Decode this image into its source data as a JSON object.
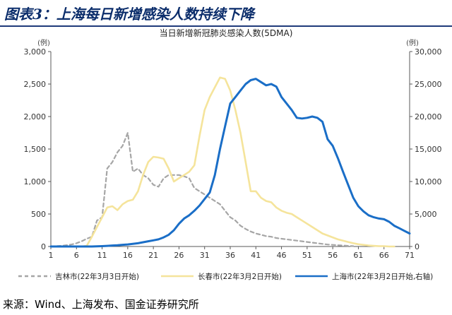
{
  "page": {
    "heading": "图表3：上海每日新增感染人数持续下降",
    "source": "来源：Wind、上海发布、国金证券研究所"
  },
  "chart_data": {
    "type": "line",
    "title": "当日新增新冠肺炎感染人数(5DMA)",
    "left_unit": "(例)",
    "right_unit": "(例)",
    "ylim_left": [
      0,
      3000
    ],
    "ylim_right": [
      0,
      30000
    ],
    "yticks_left": [
      "0",
      "500",
      "1,000",
      "1,500",
      "2,000",
      "2,500",
      "3,000"
    ],
    "yticks_right": [
      "0",
      "5,000",
      "10,000",
      "15,000",
      "20,000",
      "25,000",
      "30,000"
    ],
    "xlim": [
      1,
      71
    ],
    "xticks": [
      1,
      6,
      11,
      16,
      21,
      26,
      31,
      36,
      41,
      46,
      51,
      56,
      61,
      66,
      71
    ],
    "grid": false,
    "legend_position": "bottom",
    "colors": {
      "jilin": "#a6a6a6",
      "changchun": "#f5e49b",
      "shanghai": "#1a6ec7",
      "axis": "#595959"
    },
    "series": [
      {
        "name": "吉林市(22年3月3日开始)",
        "axis": "left",
        "style": "dashed",
        "color": "#a6a6a6",
        "x": [
          1,
          2,
          3,
          4,
          5,
          6,
          7,
          8,
          9,
          10,
          11,
          12,
          13,
          14,
          15,
          16,
          17,
          18,
          19,
          20,
          21,
          22,
          23,
          24,
          25,
          26,
          27,
          28,
          29,
          30,
          31,
          32,
          33,
          34,
          35,
          36,
          37,
          38,
          39,
          40,
          41,
          42,
          43,
          44,
          45,
          46,
          47,
          48,
          49,
          50,
          51,
          52,
          53,
          54,
          55,
          56,
          57,
          58,
          59,
          60
        ],
        "values": [
          0,
          5,
          10,
          20,
          30,
          50,
          80,
          120,
          150,
          400,
          450,
          1200,
          1300,
          1450,
          1550,
          1750,
          1150,
          1200,
          1100,
          1050,
          950,
          920,
          1050,
          1100,
          1100,
          1100,
          1080,
          1050,
          900,
          850,
          800,
          750,
          700,
          650,
          550,
          450,
          400,
          320,
          270,
          230,
          200,
          180,
          160,
          150,
          130,
          120,
          110,
          100,
          90,
          80,
          70,
          60,
          50,
          40,
          30,
          25,
          20,
          15,
          10,
          5
        ]
      },
      {
        "name": "长春市(22年3月2日开始)",
        "axis": "left",
        "style": "solid",
        "color": "#f5e49b",
        "x": [
          1,
          2,
          3,
          4,
          5,
          6,
          7,
          8,
          9,
          10,
          11,
          12,
          13,
          14,
          15,
          16,
          17,
          18,
          19,
          20,
          21,
          22,
          23,
          24,
          25,
          26,
          27,
          28,
          29,
          30,
          31,
          32,
          33,
          34,
          35,
          36,
          37,
          38,
          39,
          40,
          41,
          42,
          43,
          44,
          45,
          46,
          47,
          48,
          49,
          50,
          51,
          52,
          53,
          54,
          55,
          56,
          57,
          58,
          59,
          60,
          61,
          62,
          63,
          64,
          65,
          66,
          67,
          68
        ],
        "values": [
          0,
          0,
          0,
          0,
          0,
          0,
          0,
          10,
          150,
          300,
          450,
          600,
          620,
          560,
          650,
          700,
          720,
          850,
          1100,
          1300,
          1380,
          1370,
          1350,
          1200,
          1000,
          1050,
          1100,
          1150,
          1250,
          1700,
          2100,
          2300,
          2450,
          2600,
          2580,
          2400,
          2100,
          1750,
          1300,
          850,
          850,
          750,
          700,
          680,
          600,
          550,
          520,
          500,
          450,
          400,
          350,
          300,
          250,
          200,
          170,
          140,
          110,
          90,
          70,
          50,
          35,
          25,
          15,
          10,
          5,
          5,
          0,
          0
        ]
      },
      {
        "name": "上海市(22年3月2日开始,右轴)",
        "axis": "right",
        "style": "solid",
        "color": "#1a6ec7",
        "x": [
          1,
          2,
          3,
          4,
          5,
          6,
          7,
          8,
          9,
          10,
          11,
          12,
          13,
          14,
          15,
          16,
          17,
          18,
          19,
          20,
          21,
          22,
          23,
          24,
          25,
          26,
          27,
          28,
          29,
          30,
          31,
          32,
          33,
          34,
          35,
          36,
          37,
          38,
          39,
          40,
          41,
          42,
          43,
          44,
          45,
          46,
          47,
          48,
          49,
          50,
          51,
          52,
          53,
          54,
          55,
          56,
          57,
          58,
          59,
          60,
          61,
          62,
          63,
          64,
          65,
          66,
          67,
          68,
          69,
          70,
          71
        ],
        "values": [
          0,
          0,
          0,
          0,
          0,
          0,
          0,
          0,
          0,
          20,
          50,
          100,
          150,
          200,
          260,
          320,
          400,
          500,
          650,
          800,
          950,
          1100,
          1400,
          1800,
          2500,
          3500,
          4300,
          4800,
          5500,
          6300,
          7300,
          8300,
          11000,
          15000,
          18500,
          22000,
          23000,
          24000,
          25000,
          25600,
          25800,
          25300,
          24800,
          25000,
          24600,
          23000,
          22000,
          21000,
          19800,
          19700,
          19800,
          20000,
          19800,
          19200,
          16500,
          15500,
          13600,
          11500,
          9500,
          7500,
          6200,
          5400,
          4800,
          4500,
          4300,
          4200,
          3800,
          3200,
          2800,
          2400,
          2000
        ]
      }
    ]
  }
}
